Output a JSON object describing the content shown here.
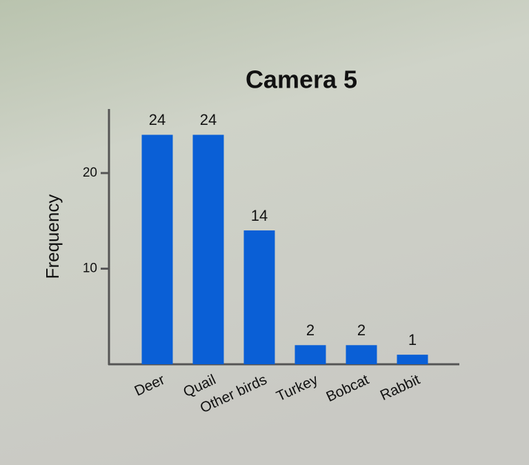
{
  "chart_data": {
    "type": "bar",
    "title": "Camera 5",
    "y_label": "Frequency",
    "categories": [
      "Deer",
      "Quail",
      "Other birds",
      "Turkey",
      "Bobcat",
      "Rabbit"
    ],
    "values": [
      24,
      24,
      14,
      2,
      2,
      1
    ],
    "color": "#0a5fd6",
    "ylim": [
      0,
      26.7
    ],
    "yticks": [
      10,
      20
    ],
    "grid": false
  }
}
